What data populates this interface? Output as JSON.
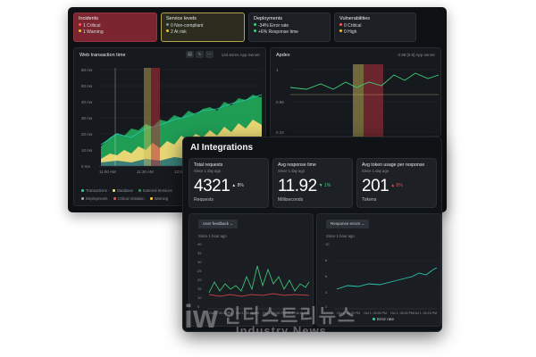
{
  "summary": {
    "incidents": {
      "title": "Incidents",
      "critical": "1 Critical",
      "warning": "1 Warning"
    },
    "service_levels": {
      "title": "Service levels",
      "noncompliant": "0 Non-compliant",
      "at_risk": "2 At risk"
    },
    "deployments": {
      "title": "Deployments",
      "error_rate": "-34% Error rate",
      "response_time": "+6% Response time"
    },
    "vulnerabilities": {
      "title": "Vulnerabilities",
      "critical": "0 Critical",
      "high": "0 High"
    }
  },
  "web_panel": {
    "title": "Web transaction time",
    "subtitle": "142.64ms App Server",
    "y_ticks": [
      "60 ms",
      "50 ms",
      "40 ms",
      "30 ms",
      "20 ms",
      "10 ms",
      "0 ms"
    ],
    "x_ticks": [
      "11:00 AM",
      "11:30 AM",
      "12:00 PM"
    ],
    "legend_row1": [
      "Transactions",
      "Database",
      "External Services"
    ],
    "legend_row2": [
      "Deployments",
      "Critical Violation",
      "Warning"
    ]
  },
  "apdex_panel": {
    "title": "Apdex",
    "subtitle": "0.98 [0.5] App server",
    "y_ticks": [
      "1",
      "0.66",
      "0.33"
    ]
  },
  "ai": {
    "title": "AI Integrations",
    "kpis": [
      {
        "title": "Total requests",
        "sub": "Since 1 day ago",
        "value": "4321",
        "delta": "▲ 8%",
        "unit": "Requests"
      },
      {
        "title": "Avg response time",
        "sub": "Since 1 day ago",
        "value": "11.92",
        "delta": "▼ 1%",
        "unit": "Milliseconds"
      },
      {
        "title": "Avg token usage per response",
        "sub": "Since 1 day ago",
        "value": "201",
        "delta": "▲ 8%",
        "unit": "Tokens"
      }
    ],
    "left_chart": {
      "select": "User feedback ⌄",
      "sub": "Since 1 hour ago",
      "y_ticks": [
        "40",
        "35",
        "30",
        "25",
        "20",
        "15",
        "10",
        "5"
      ],
      "x_ticks": [
        "Oct 1, 05:30 PM",
        "Oct 1, 05:45 PM",
        "Oct 1, 06:00 PM",
        "Oct 1, 06:15 PM"
      ]
    },
    "right_chart": {
      "select": "Response errors ⌄",
      "sub": "Since 1 hour ago",
      "y_ticks": [
        "10",
        "8",
        "6",
        "4",
        "2"
      ],
      "x_ticks": [
        "Oct 1, 05:30 PM",
        "Oct 1, 05:45 PM",
        "Oct 1, 06:00 PM",
        "Oct 1, 06:15 PM"
      ],
      "legend": "Error rate"
    }
  },
  "watermark": {
    "logo": "iw",
    "korean": "인더스트리뉴스",
    "english": "Industry News"
  },
  "colors": {
    "green_area": "#1f9d55",
    "yellow_area": "#e6d774",
    "teal_line": "#28c6b2",
    "red_band": "#b3303b",
    "yellow_band": "#c9b85a",
    "red": "#e5484d",
    "green": "#3fcf7a"
  }
}
